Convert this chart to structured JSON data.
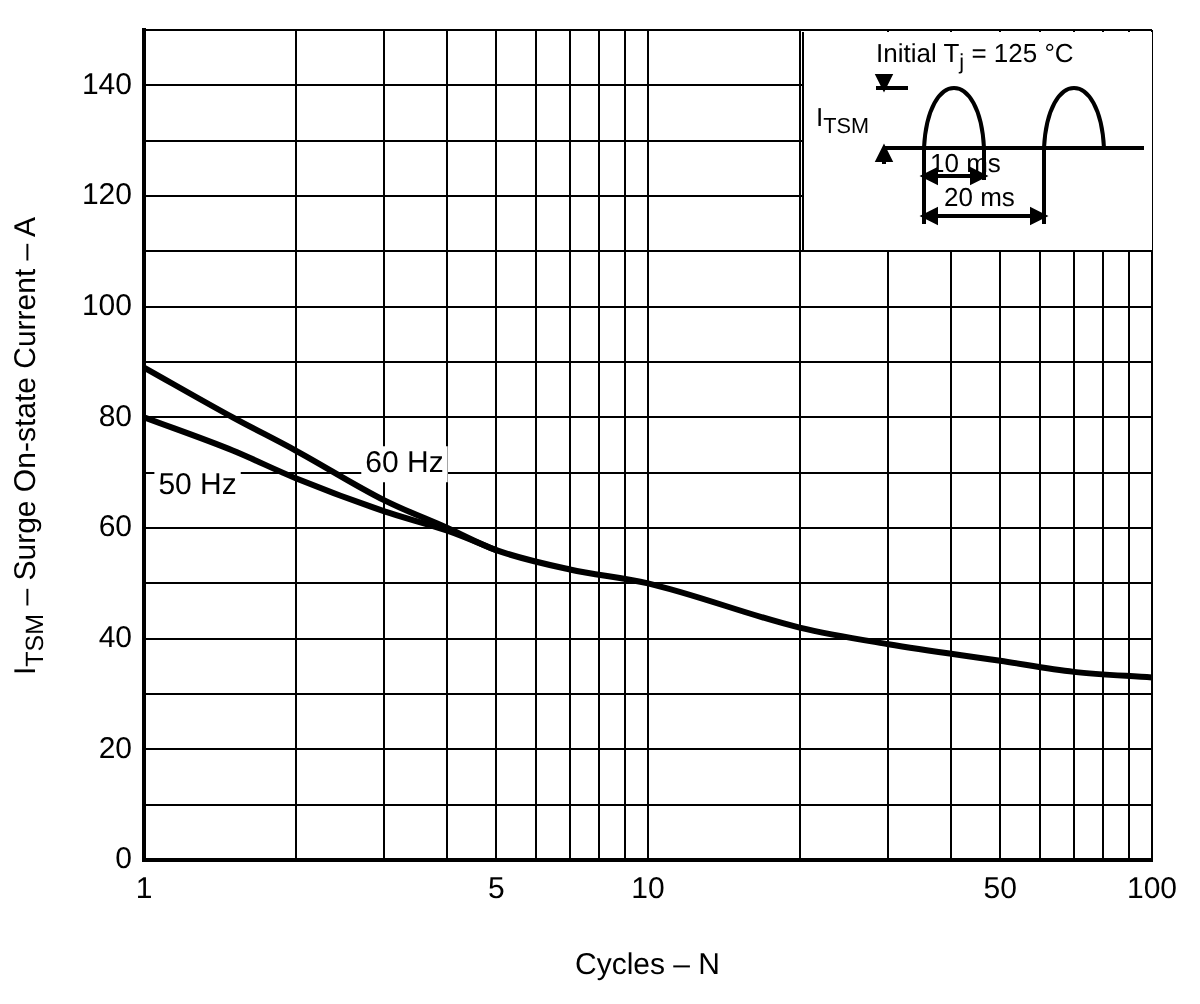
{
  "chart_data": {
    "type": "line",
    "xlabel": "Cycles – N",
    "ylabel": "I$_{TSM}$ – Surge On-state Current – A",
    "annotations": [
      "Initial  T$_{j}$ = 125 °C",
      "I$_{TSM}$",
      "10 ms",
      "20 ms"
    ],
    "log": "x",
    "grid": true,
    "legend": false,
    "marker": "none",
    "line_style": "solid",
    "xlim": [
      1,
      100
    ],
    "ylim": [
      0,
      150
    ],
    "xticks": [
      1,
      {
        "value": 2,
        "label": null
      },
      {
        "value": 3,
        "label": null
      },
      {
        "value": 4,
        "label": null
      },
      5,
      {
        "value": 6,
        "label": null
      },
      {
        "value": 7,
        "label": null
      },
      {
        "value": 8,
        "label": null
      },
      {
        "value": 9,
        "label": null
      },
      10,
      {
        "value": 20,
        "label": null
      },
      {
        "value": 30,
        "label": null
      },
      {
        "value": 40,
        "label": null
      },
      50,
      {
        "value": 60,
        "label": null
      },
      {
        "value": 70,
        "label": null
      },
      {
        "value": 80,
        "label": null
      },
      {
        "value": 90,
        "label": null
      },
      100
    ],
    "yticks": [
      0,
      {
        "value": 10,
        "label": null
      },
      20,
      {
        "value": 30,
        "label": null
      },
      40,
      {
        "value": 50,
        "label": null
      },
      60,
      {
        "value": 70,
        "label": null
      },
      80,
      {
        "value": 90,
        "label": null
      },
      100,
      {
        "value": 110,
        "label": null
      },
      120,
      {
        "value": 130,
        "label": null
      },
      140,
      {
        "value": 150,
        "label": null
      }
    ],
    "series": [
      {
        "name": "60 Hz",
        "color": "#000000",
        "x": [
          1,
          1.5,
          2,
          3,
          4,
          5,
          7,
          10,
          20,
          30,
          50,
          70,
          100
        ],
        "values": [
          89,
          80,
          74,
          65,
          60,
          56,
          52.5,
          50,
          42,
          39,
          36,
          34,
          33
        ]
      },
      {
        "name": "50 Hz",
        "color": "#000000",
        "x": [
          1,
          1.5,
          2,
          3,
          4,
          5
        ],
        "values": [
          80,
          74,
          69,
          63,
          59.5,
          56
        ]
      }
    ]
  }
}
